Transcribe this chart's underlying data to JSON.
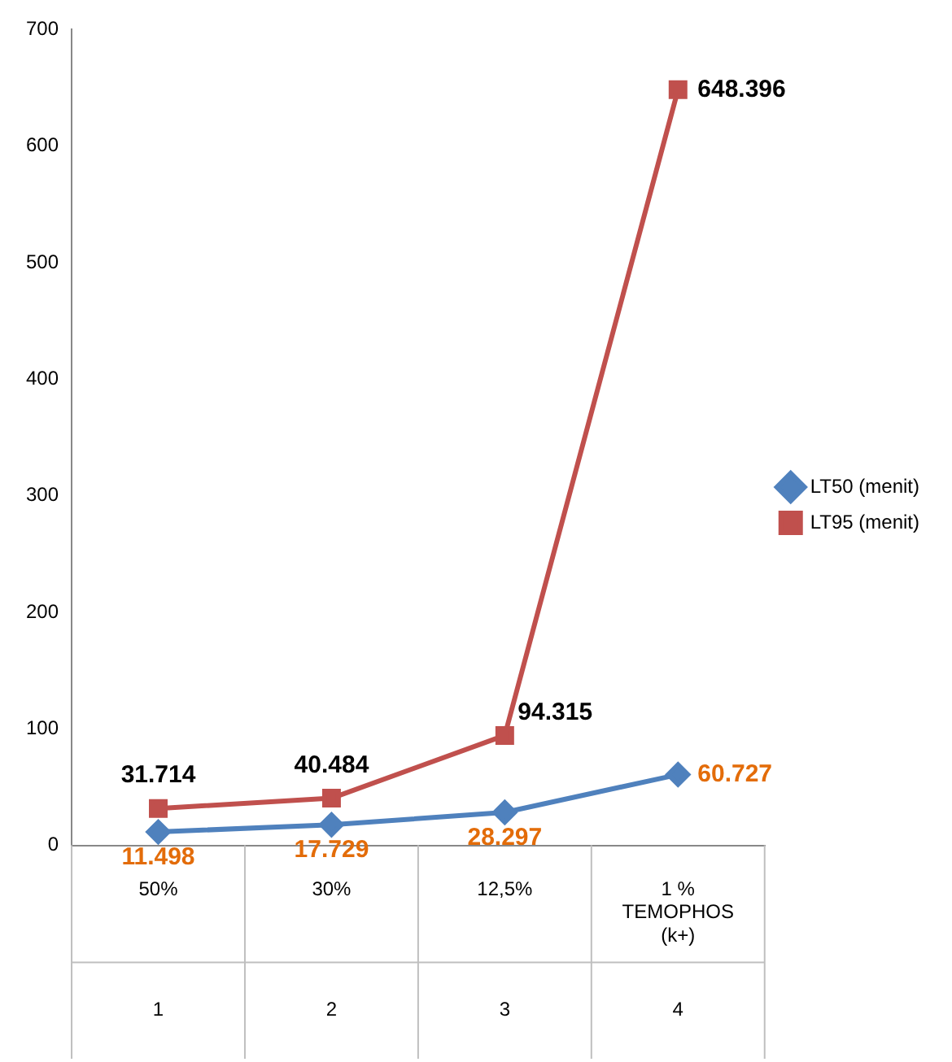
{
  "chart_data": {
    "type": "line",
    "categories": [
      "50%",
      "30%",
      "12,5%",
      "1 % TEMOPHOS (k+)"
    ],
    "series": [
      {
        "name": "LT50 (menit)",
        "color": "#4f81bd",
        "marker": "diamond",
        "values": [
          11.498,
          17.729,
          28.297,
          60.727
        ]
      },
      {
        "name": "LT95 (menit)",
        "color": "#c0504d",
        "marker": "square",
        "values": [
          31.714,
          40.484,
          94.315,
          648.396
        ]
      }
    ],
    "annotations": [
      "1",
      "2",
      "3",
      "4"
    ],
    "ylim": [
      0,
      700
    ],
    "yticks": [
      0,
      100,
      200,
      300,
      400,
      500,
      600,
      700
    ],
    "grid": false,
    "legend": "right",
    "data_labels": true,
    "line_style": "solid"
  }
}
